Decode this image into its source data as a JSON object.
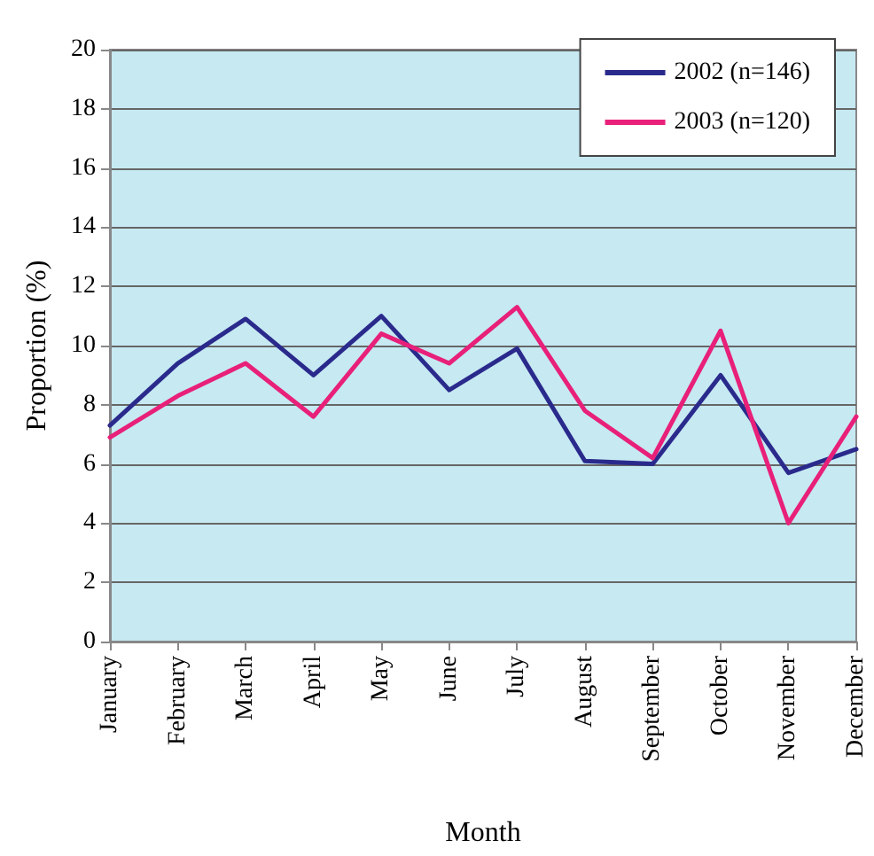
{
  "chart_data": {
    "type": "line",
    "xlabel": "Month",
    "ylabel": "Proportion (%)",
    "categories": [
      "January",
      "February",
      "March",
      "April",
      "May",
      "June",
      "July",
      "August",
      "September",
      "October",
      "November",
      "December"
    ],
    "series": [
      {
        "name": "2002 (n=146)",
        "color": "#2a2a8c",
        "values": [
          7.3,
          9.4,
          10.9,
          9.0,
          11.0,
          8.5,
          9.9,
          6.1,
          6.0,
          9.0,
          5.7,
          6.5
        ]
      },
      {
        "name": "2003 (n=120)",
        "color": "#e8207a",
        "values": [
          6.9,
          8.3,
          9.4,
          7.6,
          10.4,
          9.4,
          11.3,
          7.8,
          6.2,
          10.5,
          4.0,
          7.6
        ]
      }
    ],
    "ylim": [
      0,
      20
    ],
    "yticks": [
      0,
      2,
      4,
      6,
      8,
      10,
      12,
      14,
      16,
      18,
      20
    ],
    "grid": "y",
    "legend": "top right",
    "marker": "none",
    "line_style": "solid"
  }
}
